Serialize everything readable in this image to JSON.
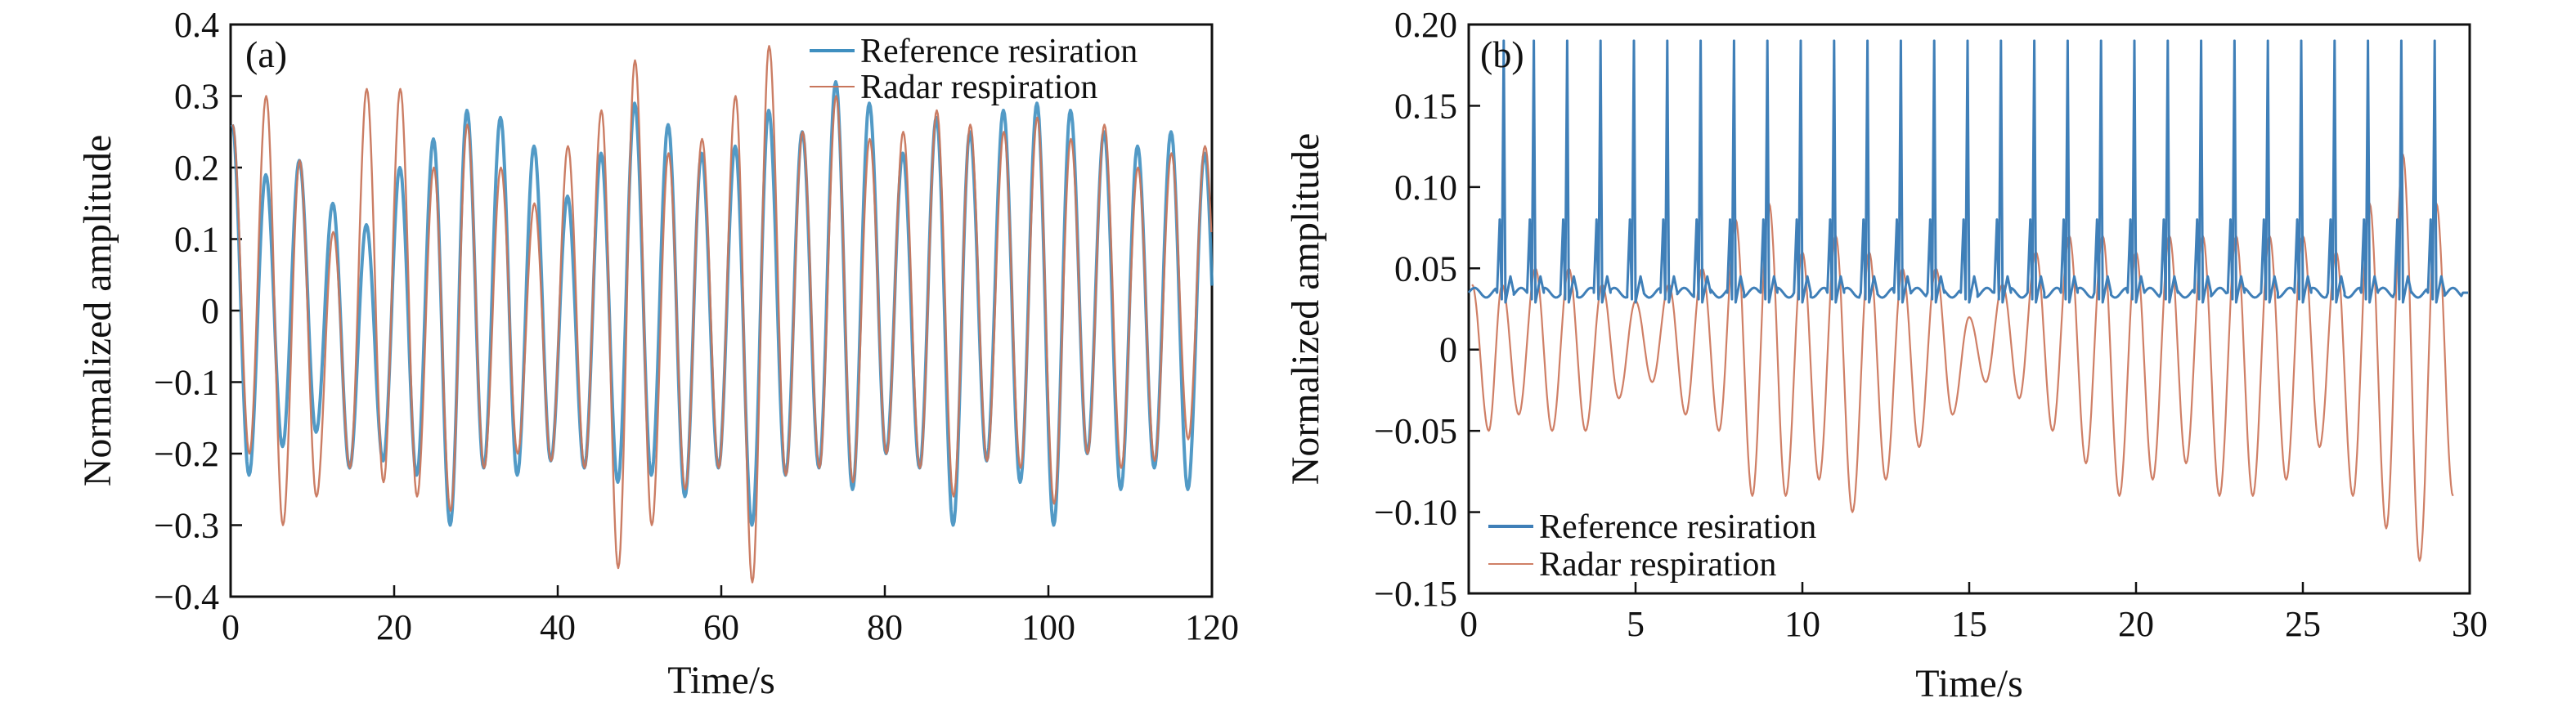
{
  "chart_data": [
    {
      "type": "line",
      "panel_label": "(a)",
      "xlabel": "Time/s",
      "ylabel": "Normalized amplitude",
      "xlim": [
        0,
        120
      ],
      "ylim": [
        -0.4,
        0.4
      ],
      "x_ticks": [
        0,
        20,
        40,
        60,
        80,
        100,
        120
      ],
      "x_tick_labels": [
        "0",
        "20",
        "40",
        "60",
        "80",
        "100",
        "120"
      ],
      "y_ticks": [
        0.4,
        0.3,
        0.2,
        0.1,
        0,
        -0.1,
        -0.2,
        -0.3,
        -0.4
      ],
      "y_tick_labels": [
        "0.4",
        "0.3",
        "0.2",
        "0.1",
        "0",
        "−0.1",
        "−0.2",
        "−0.3",
        "−0.4"
      ],
      "legend_position": "top-right",
      "grid": false,
      "breath_period_s": 4.1,
      "series": [
        {
          "name": "Reference resiration",
          "color": "#3f8fc0",
          "style": "smooth",
          "peaks": [
            0.26,
            0.19,
            0.21,
            0.15,
            0.12,
            0.2,
            0.24,
            0.28,
            0.27,
            0.23,
            0.16,
            0.22,
            0.29,
            0.26,
            0.22,
            0.23,
            0.28,
            0.25,
            0.32,
            0.29,
            0.22,
            0.27,
            0.25,
            0.28,
            0.29,
            0.28,
            0.25,
            0.23,
            0.25,
            0.22
          ],
          "troughs": [
            -0.23,
            -0.19,
            -0.17,
            -0.22,
            -0.21,
            -0.23,
            -0.3,
            -0.22,
            -0.23,
            -0.21,
            -0.22,
            -0.24,
            -0.23,
            -0.26,
            -0.22,
            -0.3,
            -0.23,
            -0.22,
            -0.25,
            -0.2,
            -0.22,
            -0.3,
            -0.21,
            -0.24,
            -0.3,
            -0.2,
            -0.25,
            -0.22,
            -0.25,
            -0.24
          ]
        },
        {
          "name": "Radar respiration",
          "color": "#c8765c",
          "style": "smooth",
          "peaks": [
            0.26,
            0.3,
            0.21,
            0.11,
            0.31,
            0.31,
            0.2,
            0.26,
            0.2,
            0.15,
            0.23,
            0.28,
            0.35,
            0.22,
            0.24,
            0.3,
            0.37,
            0.25,
            0.3,
            0.24,
            0.25,
            0.28,
            0.26,
            0.25,
            0.27,
            0.24,
            0.26,
            0.2,
            0.22,
            0.23
          ],
          "troughs": [
            -0.2,
            -0.3,
            -0.26,
            -0.22,
            -0.24,
            -0.26,
            -0.28,
            -0.22,
            -0.2,
            -0.21,
            -0.22,
            -0.36,
            -0.3,
            -0.25,
            -0.22,
            -0.38,
            -0.23,
            -0.22,
            -0.24,
            -0.2,
            -0.22,
            -0.26,
            -0.21,
            -0.22,
            -0.27,
            -0.2,
            -0.22,
            -0.21,
            -0.18,
            -0.16
          ]
        }
      ]
    },
    {
      "type": "line",
      "panel_label": "(b)",
      "xlabel": "Time/s",
      "ylabel": "Normalized amplitude",
      "xlim": [
        0,
        30
      ],
      "ylim": [
        -0.15,
        0.2
      ],
      "x_ticks": [
        0,
        5,
        10,
        15,
        20,
        25,
        30
      ],
      "x_tick_labels": [
        "0",
        "5",
        "10",
        "15",
        "20",
        "25",
        "30"
      ],
      "y_ticks": [
        0.2,
        0.15,
        0.1,
        0.05,
        0,
        -0.05,
        -0.1,
        -0.15
      ],
      "y_tick_labels": [
        "0.20",
        "0.15",
        "0.10",
        "0.05",
        "0",
        "−0.05",
        "−0.10",
        "−0.15"
      ],
      "legend_position": "bottom-left",
      "grid": false,
      "series": [
        {
          "name": "Reference resiration",
          "color": "#3f7fb8",
          "style": "ecg",
          "baseline": 0.035,
          "beat_times": [
            1.05,
            1.95,
            2.95,
            3.95,
            4.95,
            5.95,
            6.95,
            7.95,
            8.95,
            9.95,
            10.95,
            11.95,
            12.95,
            13.95,
            14.95,
            15.95,
            16.95,
            17.95,
            18.95,
            19.95,
            20.95,
            21.95,
            22.95,
            23.95,
            24.95,
            25.95,
            26.95,
            27.95,
            28.95
          ],
          "beat_peak": 0.19
        },
        {
          "name": "Radar respiration",
          "color": "#cf7f66",
          "style": "smooth",
          "cycle_times": [
            0.1,
            1.0,
            2.0,
            3.0,
            4.0,
            5.0,
            6.0,
            7.0,
            8.0,
            9.0,
            10.0,
            11.0,
            12.0,
            13.0,
            14.0,
            15.0,
            16.0,
            17.0,
            18.0,
            19.0,
            20.0,
            21.0,
            22.0,
            23.0,
            24.0,
            25.0,
            26.0,
            27.0,
            28.0,
            29.0
          ],
          "peaks": [
            0.04,
            0.04,
            0.05,
            0.05,
            0.04,
            0.03,
            0.04,
            0.05,
            0.08,
            0.09,
            0.06,
            0.07,
            0.06,
            0.05,
            0.05,
            0.02,
            0.04,
            0.06,
            0.07,
            0.07,
            0.06,
            0.07,
            0.07,
            0.07,
            0.07,
            0.07,
            0.06,
            0.09,
            0.12,
            0.09
          ],
          "troughs": [
            -0.05,
            -0.04,
            -0.05,
            -0.05,
            -0.03,
            -0.02,
            -0.04,
            -0.05,
            -0.09,
            -0.09,
            -0.08,
            -0.1,
            -0.08,
            -0.06,
            -0.04,
            -0.02,
            -0.03,
            -0.05,
            -0.07,
            -0.09,
            -0.08,
            -0.07,
            -0.09,
            -0.09,
            -0.08,
            -0.06,
            -0.09,
            -0.11,
            -0.13,
            -0.09
          ]
        }
      ]
    }
  ]
}
